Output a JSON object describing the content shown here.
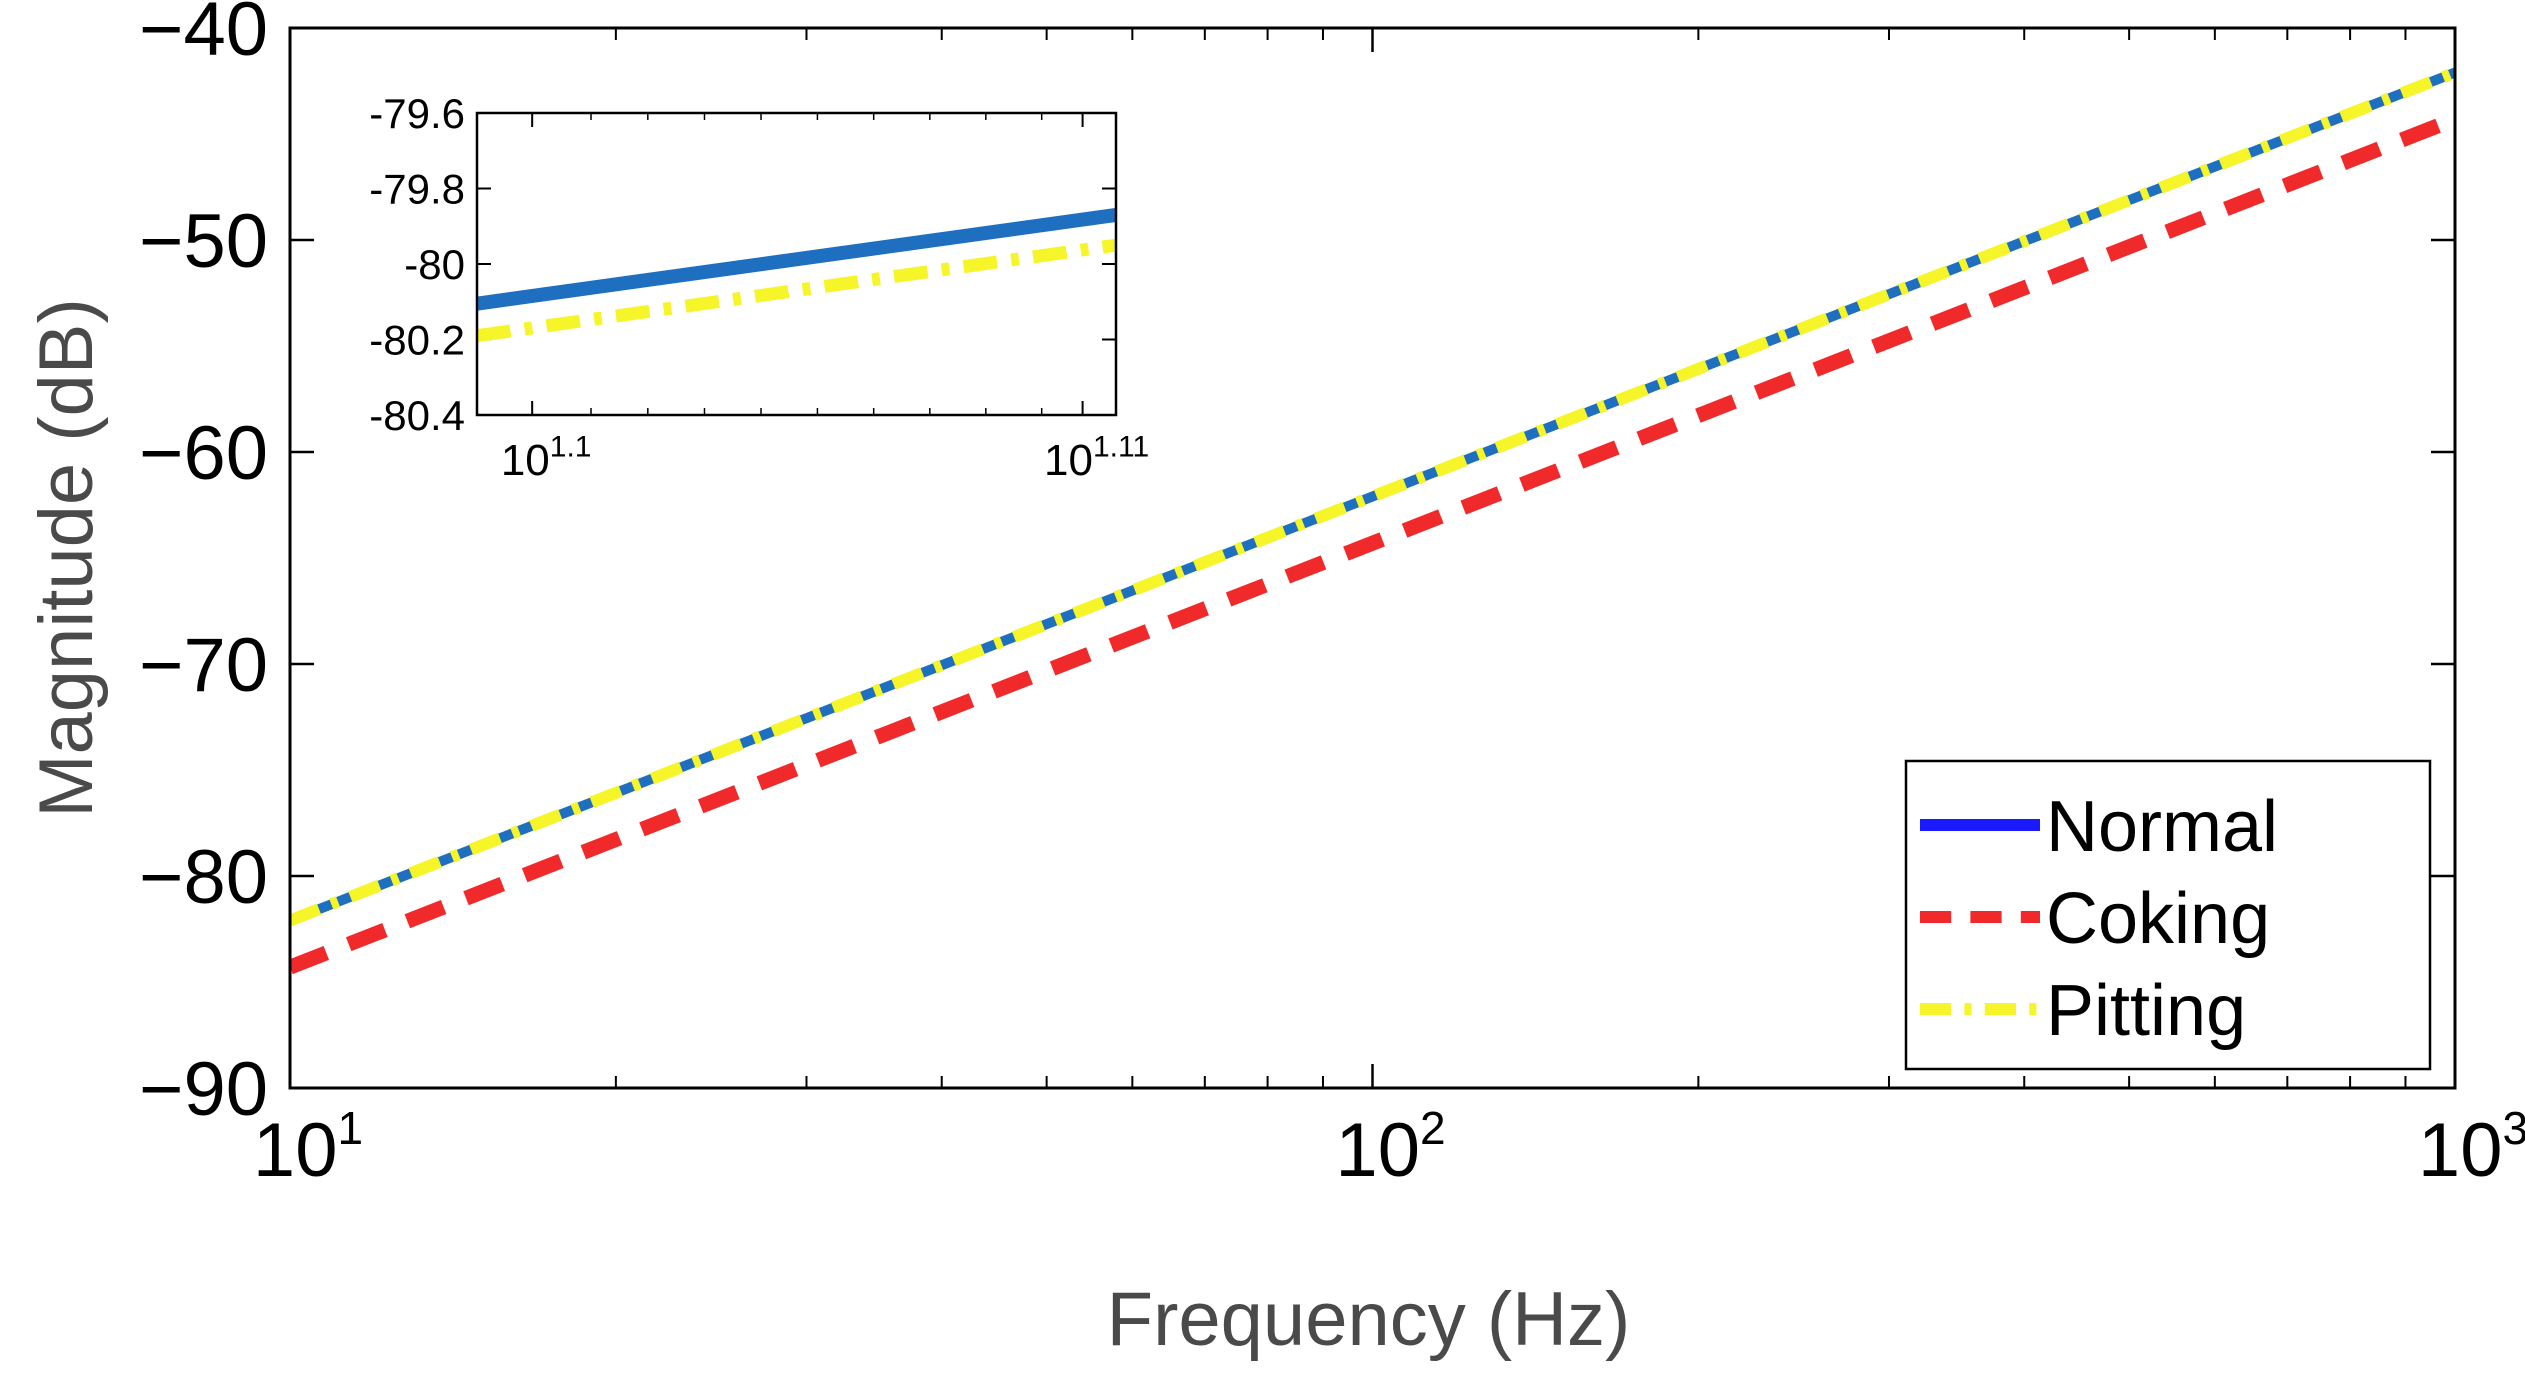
{
  "chart_data": [
    {
      "id": "main",
      "type": "line",
      "xscale": "log",
      "xlabel": "Frequency (Hz)",
      "ylabel": "Magnitude (dB)",
      "xlim": [
        10,
        1000
      ],
      "ylim": [
        -90,
        -40
      ],
      "x_ticks": [
        {
          "value": 10,
          "base": "10",
          "exp": "1"
        },
        {
          "value": 100,
          "base": "10",
          "exp": "2"
        },
        {
          "value": 1000,
          "base": "10",
          "exp": "3"
        }
      ],
      "y_ticks": [
        {
          "value": -40,
          "label": "−40"
        },
        {
          "value": -50,
          "label": "−50"
        },
        {
          "value": -60,
          "label": "−60"
        },
        {
          "value": -70,
          "label": "−70"
        },
        {
          "value": -80,
          "label": "−80"
        },
        {
          "value": -90,
          "label": "−90"
        }
      ],
      "legend_position": "bottom-right",
      "series": [
        {
          "name": "Normal",
          "color": "#1a1aff",
          "plot_color": "#1f6fc0",
          "dash": "solid",
          "x": [
            10,
            1000
          ],
          "values": [
            -82.1,
            -42.1
          ]
        },
        {
          "name": "Coking",
          "color": "#f02a2a",
          "plot_color": "#f02a2a",
          "dash": "dash",
          "x": [
            10,
            1000
          ],
          "values": [
            -84.3,
            -44.3
          ]
        },
        {
          "name": "Pitting",
          "color": "#f5f52a",
          "plot_color": "#f5f52a",
          "dash": "dashdot",
          "x": [
            10,
            1000
          ],
          "values": [
            -82.1,
            -42.1
          ]
        }
      ]
    },
    {
      "id": "inset",
      "type": "line",
      "xscale": "log",
      "xlabel": "",
      "ylabel": "",
      "xlim": [
        12.56,
        12.9
      ],
      "ylim": [
        -80.4,
        -79.6
      ],
      "x_ticks": [
        {
          "value": 12.589,
          "base": "10",
          "exp": "1.1"
        },
        {
          "value": 12.882,
          "base": "10",
          "exp": "1.11"
        }
      ],
      "y_ticks": [
        {
          "value": -79.6,
          "label": "-79.6"
        },
        {
          "value": -79.8,
          "label": "-79.8"
        },
        {
          "value": -80,
          "label": "-80"
        },
        {
          "value": -80.2,
          "label": "-80.2"
        },
        {
          "value": -80.4,
          "label": "-80.4"
        }
      ],
      "series": [
        {
          "name": "Normal",
          "plot_color": "#1f6fc0",
          "dash": "solid",
          "x": [
            12.56,
            12.9
          ],
          "values": [
            -80.105,
            -79.87
          ]
        },
        {
          "name": "Pitting",
          "plot_color": "#f5f52a",
          "dash": "dashdot",
          "x": [
            12.56,
            12.9
          ],
          "values": [
            -80.19,
            -79.95
          ]
        }
      ]
    }
  ]
}
